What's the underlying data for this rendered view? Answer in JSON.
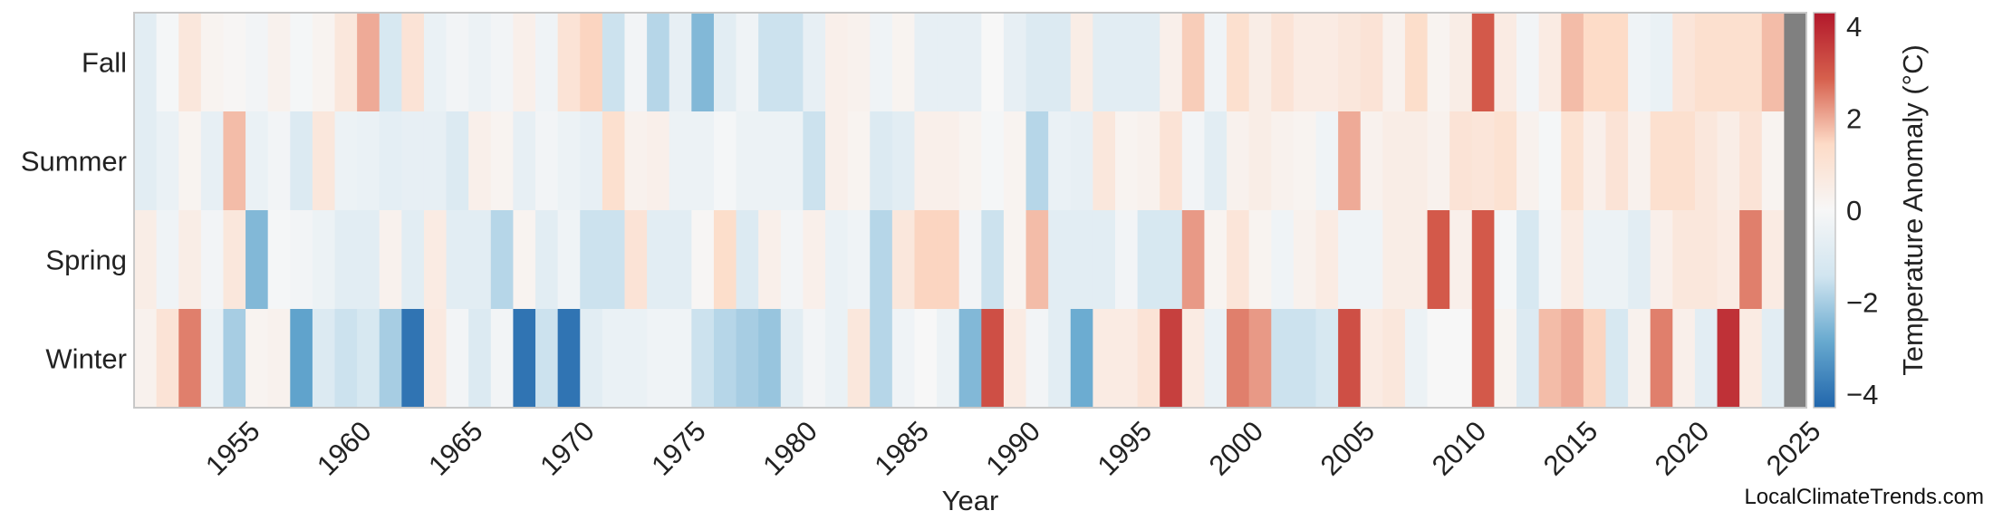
{
  "chart_data": {
    "type": "heatmap",
    "title": "",
    "xlabel": "Year",
    "colorbar_label": "Temperature Anomaly (°C)",
    "colorbar_range": [
      -4.3,
      4.3
    ],
    "colorbar_ticks": [
      {
        "value": 4,
        "label": "4"
      },
      {
        "value": 2,
        "label": "2"
      },
      {
        "value": 0,
        "label": "0"
      },
      {
        "value": -2,
        "label": "−2"
      },
      {
        "value": -4,
        "label": "−4"
      }
    ],
    "colormap": [
      "#2166ac",
      "#67a9cf",
      "#d1e5f0",
      "#f7f7f7",
      "#fddbc7",
      "#d6604d",
      "#b2182b"
    ],
    "missing_color": "#808080",
    "grid": false,
    "x_start": 1951,
    "x_end": 2025,
    "x_ticks": [
      1955,
      1960,
      1965,
      1970,
      1975,
      1980,
      1985,
      1990,
      1995,
      2000,
      2005,
      2010,
      2015,
      2020,
      2025
    ],
    "rows": [
      "Fall",
      "Summer",
      "Spring",
      "Winter"
    ],
    "values": {
      "Fall": [
        -0.8,
        -0.1,
        0.8,
        0.2,
        0.1,
        -0.2,
        0.3,
        -0.1,
        0.2,
        0.8,
        2.0,
        -1.2,
        1.0,
        -0.5,
        -0.2,
        -0.4,
        -0.2,
        0.4,
        -0.3,
        1.0,
        1.5,
        -1.5,
        -0.2,
        -1.8,
        -0.6,
        -2.5,
        -0.8,
        -0.3,
        -1.5,
        -1.5,
        -0.6,
        0.4,
        0.3,
        -0.3,
        0.2,
        -0.6,
        -0.6,
        -0.6,
        0.0,
        -0.6,
        -1.0,
        -1.0,
        0.5,
        -0.8,
        -0.8,
        -0.8,
        0.4,
        1.6,
        -0.3,
        1.2,
        0.5,
        1.0,
        0.6,
        0.6,
        0.8,
        1.0,
        0.3,
        1.3,
        0.2,
        0.5,
        3.0,
        0.6,
        -0.2,
        0.6,
        1.8,
        1.4,
        1.4,
        -0.3,
        -0.5,
        0.9,
        1.2,
        1.2,
        1.2,
        1.8,
        null
      ],
      "Summer": [
        -0.8,
        -0.5,
        0.2,
        -0.6,
        1.8,
        -0.5,
        -0.2,
        -1.0,
        0.8,
        -0.4,
        -0.5,
        -0.7,
        -0.6,
        -0.6,
        -1.0,
        0.4,
        0.2,
        -0.6,
        -0.2,
        -0.4,
        -0.6,
        1.2,
        0.3,
        0.4,
        -0.4,
        -0.4,
        -0.1,
        -0.4,
        -0.4,
        -0.4,
        -1.5,
        0.4,
        0.2,
        -1.0,
        -0.8,
        0.4,
        0.4,
        0.2,
        -0.1,
        0.2,
        -1.8,
        -0.5,
        -0.6,
        0.8,
        0.2,
        0.3,
        1.0,
        -0.2,
        -0.8,
        0.3,
        0.5,
        0.3,
        0.2,
        -0.3,
        2.0,
        0.3,
        0.5,
        0.5,
        0.3,
        1.0,
        0.9,
        1.1,
        0.3,
        -0.1,
        1.1,
        0.4,
        1.0,
        0.3,
        1.2,
        1.2,
        0.8,
        0.5,
        1.0,
        0.2,
        null
      ],
      "Spring": [
        0.5,
        -0.3,
        0.5,
        -0.2,
        0.8,
        -2.5,
        -0.1,
        -0.2,
        -0.4,
        -0.8,
        -0.8,
        0.3,
        -0.8,
        0.6,
        -0.8,
        -0.8,
        -1.8,
        0.2,
        -0.8,
        -0.3,
        -1.5,
        -1.5,
        1.0,
        -0.8,
        -0.8,
        0.1,
        1.3,
        -1.0,
        0.4,
        -0.2,
        0.4,
        -0.5,
        -0.3,
        -1.8,
        0.8,
        1.5,
        1.5,
        -0.2,
        -1.5,
        0.2,
        1.8,
        -0.8,
        -0.8,
        -0.8,
        -0.2,
        -1.2,
        -1.2,
        2.2,
        0.2,
        0.9,
        0.2,
        -0.3,
        0.3,
        0.6,
        -0.3,
        -0.3,
        0.5,
        0.5,
        3.0,
        0.4,
        3.0,
        -0.1,
        -1.2,
        -0.2,
        0.6,
        -0.4,
        -0.4,
        -0.8,
        0.4,
        0.8,
        0.8,
        0.6,
        2.5,
        0.6,
        null
      ],
      "Winter": [
        0.3,
        1.0,
        2.5,
        -0.5,
        -2.0,
        0.2,
        0.3,
        -3.0,
        -1.0,
        -1.5,
        -1.2,
        -2.0,
        -4.0,
        0.7,
        -0.2,
        -1.0,
        -0.2,
        -4.0,
        -1.5,
        -4.0,
        -0.8,
        -0.5,
        -0.5,
        -0.3,
        -0.3,
        -1.5,
        -1.8,
        -2.0,
        -2.2,
        -0.8,
        -0.2,
        -0.5,
        0.8,
        -1.8,
        -0.3,
        0.0,
        -0.4,
        -2.5,
        3.2,
        0.6,
        -0.2,
        -0.8,
        -2.8,
        0.6,
        0.6,
        1.0,
        3.5,
        0.6,
        -0.5,
        2.5,
        2.2,
        -1.5,
        -1.5,
        -1.2,
        3.2,
        0.6,
        0.8,
        -0.4,
        0.0,
        0.0,
        3.0,
        0.2,
        -1.0,
        1.8,
        2.0,
        1.5,
        -1.2,
        0.3,
        2.5,
        0.4,
        -0.8,
        3.8,
        0.6,
        -0.8,
        null
      ]
    }
  },
  "watermark": "LocalClimateTrends.com"
}
